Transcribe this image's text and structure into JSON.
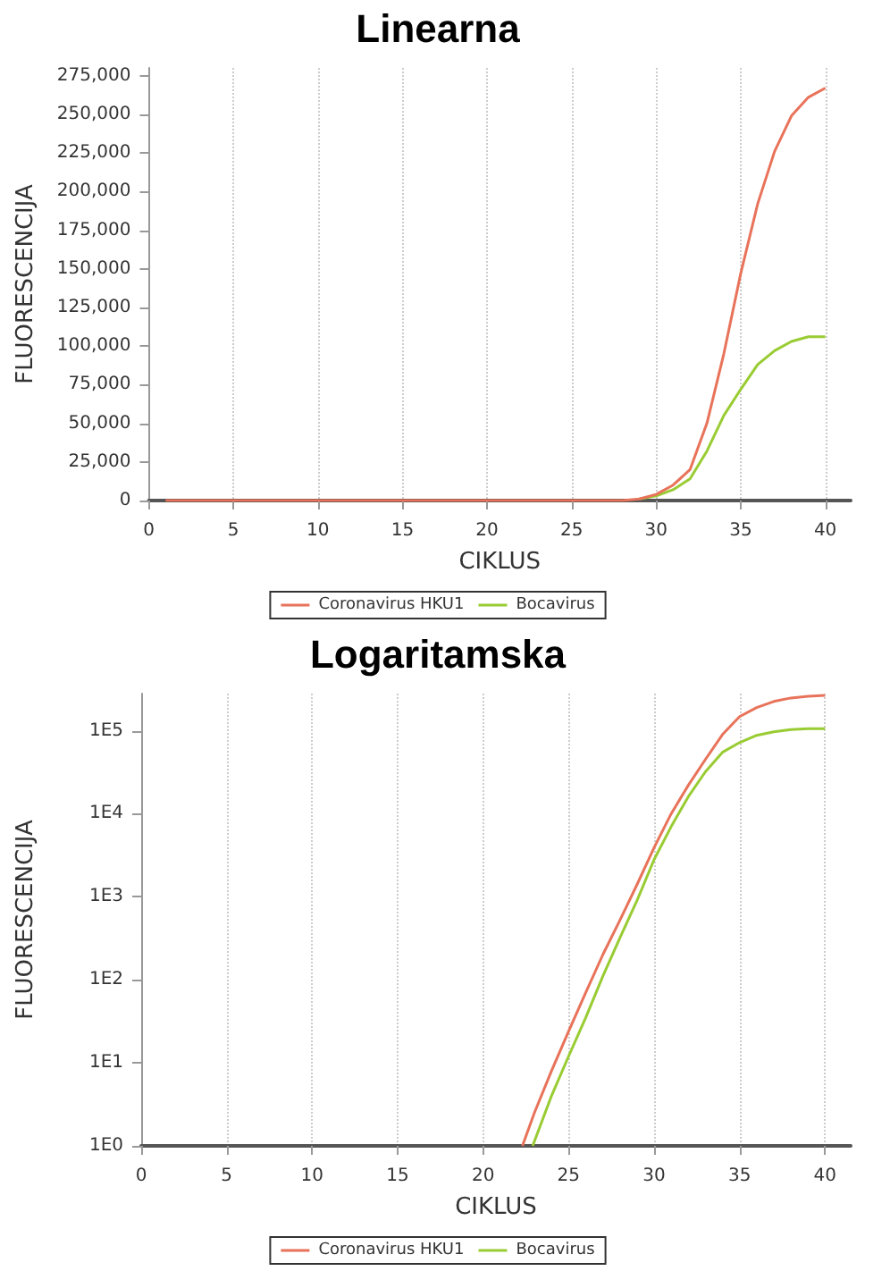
{
  "chart_data": [
    {
      "type": "line",
      "title": "Linearna",
      "xlabel": "CIKLUS",
      "ylabel": "FLUORESCENCIJA",
      "xlim": [
        0,
        41.5
      ],
      "xticks": [
        0,
        5,
        10,
        15,
        20,
        25,
        30,
        35,
        40
      ],
      "ylim": [
        0,
        280000
      ],
      "yticks": [
        {
          "value": 0,
          "label": "0"
        },
        {
          "value": 25000,
          "label": "25,000"
        },
        {
          "value": 50000,
          "label": "50,000"
        },
        {
          "value": 75000,
          "label": "75,000"
        },
        {
          "value": 100000,
          "label": "100,000"
        },
        {
          "value": 125000,
          "label": "125,000"
        },
        {
          "value": 150000,
          "label": "150,000"
        },
        {
          "value": 175000,
          "label": "175,000"
        },
        {
          "value": 200000,
          "label": "200,000"
        },
        {
          "value": 225000,
          "label": "225,000"
        },
        {
          "value": 250000,
          "label": "250,000"
        },
        {
          "value": 275000,
          "label": "275,000"
        }
      ],
      "grid": "x",
      "legend": "bottom",
      "marker": "none",
      "series": [
        {
          "name": "Coronavirus HKU1",
          "color": "#e8735a",
          "x": [
            1,
            22,
            24,
            26,
            27,
            28,
            29,
            30,
            31,
            32,
            33,
            34,
            35,
            36,
            37,
            38,
            39,
            40
          ],
          "values": [
            0,
            0,
            0,
            0,
            0,
            0,
            1000,
            4000,
            10000,
            20000,
            50000,
            95000,
            147000,
            192000,
            226000,
            249000,
            261000,
            267000
          ]
        },
        {
          "name": "Bocavirus",
          "color": "#99cc33",
          "x": [
            29,
            30,
            31,
            32,
            33,
            34,
            35,
            36,
            37,
            38,
            39,
            40
          ],
          "values": [
            1000,
            3000,
            7000,
            14000,
            32000,
            55000,
            72000,
            88000,
            97000,
            103000,
            106000,
            106000
          ]
        }
      ]
    },
    {
      "type": "line",
      "title": "Logaritamska",
      "xlabel": "CIKLUS",
      "ylabel": "FLUORESCENCIJA",
      "log": "y",
      "xlim": [
        0,
        41.5
      ],
      "xticks": [
        0,
        5,
        10,
        15,
        20,
        25,
        30,
        35,
        40
      ],
      "ylim": [
        1,
        280000
      ],
      "yticks": [
        {
          "value": 1,
          "label": "1E0"
        },
        {
          "value": 10,
          "label": "1E1"
        },
        {
          "value": 100,
          "label": "1E2"
        },
        {
          "value": 1000,
          "label": "1E3"
        },
        {
          "value": 10000,
          "label": "1E4"
        },
        {
          "value": 100000,
          "label": "1E5"
        }
      ],
      "grid": "x",
      "legend": "bottom",
      "marker": "none",
      "series": [
        {
          "name": "Coronavirus HKU1",
          "color": "#e8735a",
          "x": [
            22.3,
            23,
            24,
            25,
            26,
            27,
            28,
            29,
            30,
            31,
            32,
            33,
            34,
            35,
            36,
            37,
            38,
            39,
            40
          ],
          "values": [
            1,
            2.5,
            8,
            24,
            70,
            200,
            520,
            1400,
            3900,
            10000,
            22000,
            45000,
            90000,
            148000,
            190000,
            225000,
            248000,
            260000,
            267000
          ]
        },
        {
          "name": "Bocavirus",
          "color": "#99cc33",
          "x": [
            22.9,
            24,
            25,
            26,
            27,
            28,
            29,
            30,
            31,
            32,
            33,
            34,
            35,
            36,
            37,
            38,
            39,
            40
          ],
          "values": [
            1,
            4,
            12,
            35,
            110,
            320,
            900,
            2800,
            7000,
            16000,
            32000,
            55000,
            72000,
            88000,
            97000,
            103000,
            106000,
            106000
          ]
        }
      ]
    }
  ]
}
